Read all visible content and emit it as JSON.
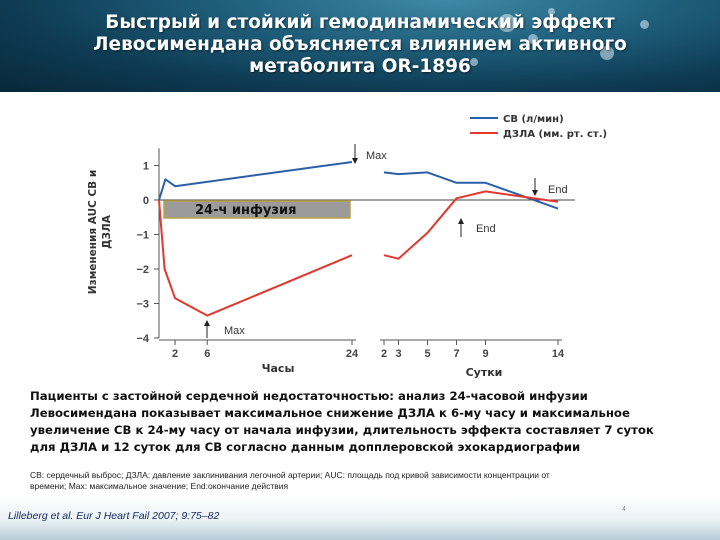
{
  "title_lines": [
    "Быстрый и стойкий гемодинамический эффект",
    "Левосимендана объясняется влиянием активного",
    "метаболита OR-1896"
  ],
  "chart_data": {
    "type": "line",
    "title": "",
    "ylabel_lines": [
      "Изменения AUC  CB и",
      "ДЗЛА"
    ],
    "ylim": [
      -4,
      1.5
    ],
    "yticks": [
      "1",
      "0",
      "−1",
      "−2",
      "−3",
      "−4"
    ],
    "ytick_values": [
      1,
      0,
      -1,
      -2,
      -3,
      -4
    ],
    "x_segments": [
      {
        "unit": "Часы",
        "ticks": [
          "2",
          "6",
          "24"
        ],
        "tick_values": [
          2,
          6,
          24
        ],
        "range": [
          0,
          24
        ]
      },
      {
        "unit": "Сутки",
        "ticks": [
          "2",
          "3",
          "5",
          "7",
          "9",
          "14"
        ],
        "tick_values": [
          2,
          3,
          5,
          7,
          9,
          14
        ],
        "range": [
          2,
          14
        ]
      }
    ],
    "series": [
      {
        "name": "CB (л/мин)",
        "color": "#2b5fa8",
        "segments": [
          {
            "x": [
              0,
              0.8,
              2,
              24
            ],
            "y": [
              0,
              0.6,
              0.4,
              1.1
            ]
          },
          {
            "x": [
              2,
              3,
              5,
              7,
              9,
              14
            ],
            "y": [
              0.8,
              0.75,
              0.8,
              0.5,
              0.5,
              -0.25
            ]
          }
        ]
      },
      {
        "name": "ДЗЛА (мм. рт. ст.)",
        "color": "#e0392f",
        "segments": [
          {
            "x": [
              0,
              0.7,
              2,
              6,
              24
            ],
            "y": [
              0,
              -2,
              -2.85,
              -3.35,
              -1.6
            ]
          },
          {
            "x": [
              2,
              3,
              5,
              7,
              9,
              14
            ],
            "y": [
              -1.6,
              -1.7,
              -0.95,
              0.05,
              0.25,
              -0.05
            ]
          }
        ]
      }
    ],
    "annotations": {
      "infusion_label": "24-ч инфузия",
      "max_top": "Max",
      "max_bottom": "Max",
      "end_top": "End",
      "end_bottom": "End"
    },
    "legend": "top-right"
  },
  "summary_lines": [
    "Пациенты с застойной сердечной недостаточностью: анализ 24-часовой инфузии",
    "Левосимендана показывает максимальное снижение ДЗЛА к 6-му часу и максимальное",
    "увеличение СВ к 24-му часу от начала инфузии, длительность эффекта составляет 7 суток",
    "для ДЗЛА и 12 суток для СВ согласно данным допплеровской эхокардиографии"
  ],
  "notes_lines": [
    "СВ: сердечный выброс; ДЗЛА: давление заклинивания легочной артерии; AUC:  площадь под кривой  зависимости  концентрации  от",
    "времени; Max: максимальное значение;  End:окончание действия"
  ],
  "citation": "Lilleberg et al. Eur J Heart Fail 2007; 9:75–82",
  "slide_number": "4"
}
